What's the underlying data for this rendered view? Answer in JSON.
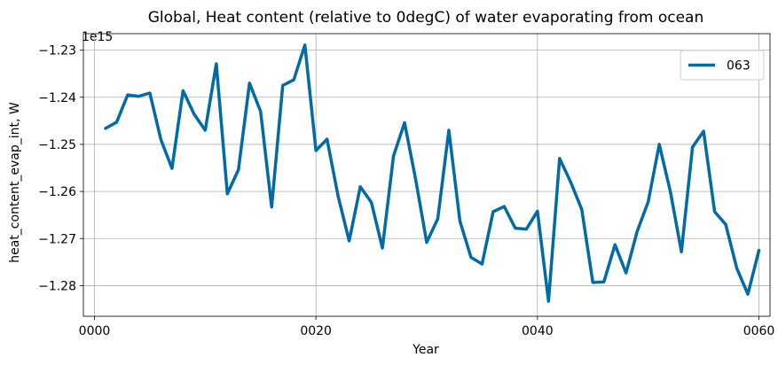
{
  "chart_data": {
    "type": "line",
    "title": "Global, Heat content (relative to 0degC) of water evaporating from ocean",
    "xlabel": "Year",
    "ylabel": "heat_content_evap_int, W",
    "y_offset_label": "1e15",
    "xlim": [
      -1,
      61
    ],
    "ylim": [
      -1.2865,
      -1.2265
    ],
    "xticks": [
      0,
      20,
      40,
      60
    ],
    "xtick_labels": [
      "0000",
      "0020",
      "0040",
      "0060"
    ],
    "yticks": [
      -1.28,
      -1.27,
      -1.26,
      -1.25,
      -1.24,
      -1.23
    ],
    "ytick_labels": [
      "−1.28",
      "−1.27",
      "−1.26",
      "−1.25",
      "−1.24",
      "−1.23"
    ],
    "grid": true,
    "legend_position": "top-right",
    "colors": {
      "line": "#006ba4"
    },
    "series": [
      {
        "name": "063",
        "x": [
          1,
          2,
          3,
          4,
          5,
          6,
          7,
          8,
          9,
          10,
          11,
          12,
          13,
          14,
          15,
          16,
          17,
          18,
          19,
          20,
          21,
          22,
          23,
          24,
          25,
          26,
          27,
          28,
          29,
          30,
          31,
          32,
          33,
          34,
          35,
          36,
          37,
          38,
          39,
          40,
          41,
          42,
          43,
          44,
          45,
          46,
          47,
          48,
          49,
          50,
          51,
          52,
          53,
          54,
          55,
          56,
          57,
          58,
          59,
          60
        ],
        "values": [
          -1.2466,
          -1.2453,
          -1.2395,
          -1.2398,
          -1.2391,
          -1.249,
          -1.2551,
          -1.2386,
          -1.2436,
          -1.247,
          -1.2329,
          -1.2605,
          -1.2554,
          -1.237,
          -1.243,
          -1.2633,
          -1.2375,
          -1.2363,
          -1.2289,
          -1.2513,
          -1.2489,
          -1.261,
          -1.2705,
          -1.259,
          -1.2623,
          -1.272,
          -1.2525,
          -1.2454,
          -1.2574,
          -1.2708,
          -1.2658,
          -1.247,
          -1.2663,
          -1.274,
          -1.2754,
          -1.2643,
          -1.2632,
          -1.2678,
          -1.268,
          -1.2642,
          -1.2833,
          -1.253,
          -1.258,
          -1.2638,
          -1.2793,
          -1.2792,
          -1.2713,
          -1.2773,
          -1.2685,
          -1.2622,
          -1.25,
          -1.26,
          -1.2728,
          -1.2506,
          -1.2472,
          -1.2643,
          -1.267,
          -1.2763,
          -1.2818,
          -1.2725
        ]
      }
    ]
  }
}
